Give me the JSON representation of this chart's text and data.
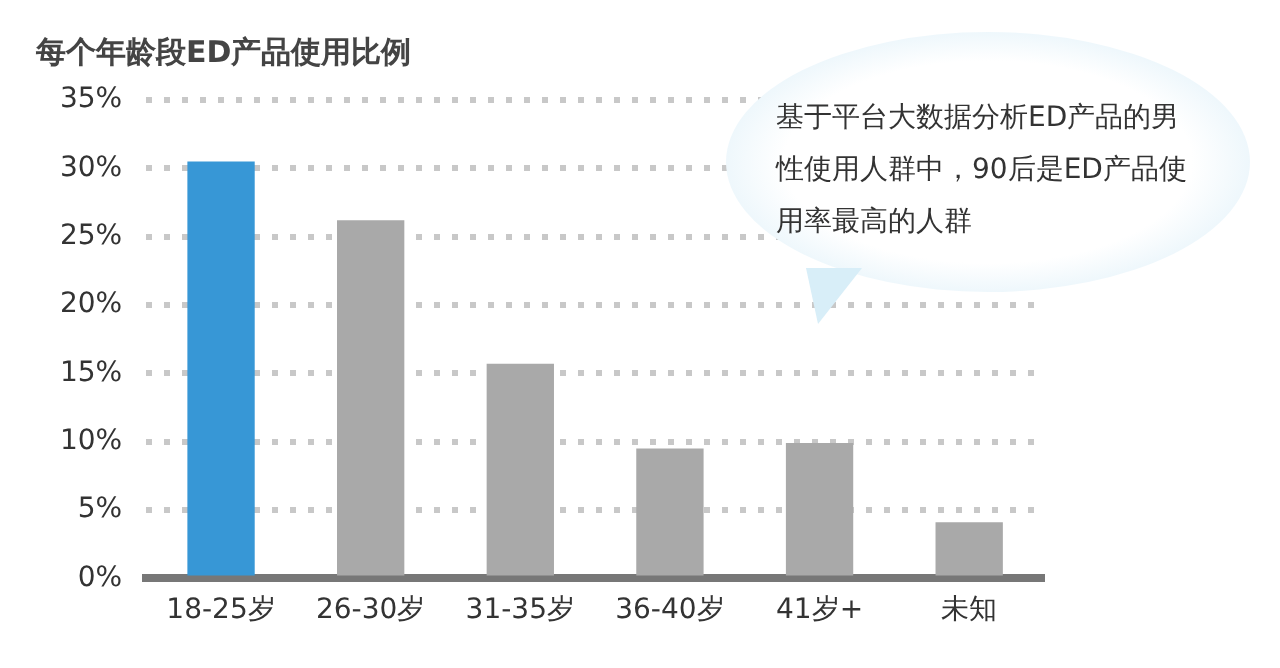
{
  "chart_data": {
    "type": "bar",
    "title": "每个年龄段ED产品使用比例",
    "categories": [
      "18-25岁",
      "26-30岁",
      "31-35岁",
      "36-40岁",
      "41岁+",
      "未知"
    ],
    "values": [
      30.5,
      26.2,
      15.7,
      9.5,
      9.9,
      4.1
    ],
    "colors": [
      "#3797d6",
      "#a9a9a9",
      "#a9a9a9",
      "#a9a9a9",
      "#a9a9a9",
      "#a9a9a9"
    ],
    "ylim": [
      0,
      35
    ],
    "yticks": [
      {
        "value": 0,
        "label": "0%"
      },
      {
        "value": 5,
        "label": "5%"
      },
      {
        "value": 10,
        "label": "10%"
      },
      {
        "value": 15,
        "label": "15%"
      },
      {
        "value": 20,
        "label": "20%"
      },
      {
        "value": 25,
        "label": "25%"
      },
      {
        "value": 30,
        "label": "30%"
      },
      {
        "value": 35,
        "label": "35%"
      }
    ],
    "grid": "y",
    "annotations": [
      "基于平台大数据分析ED产品的男性使用人群中，90后是ED产品使用率最高的人群"
    ]
  }
}
